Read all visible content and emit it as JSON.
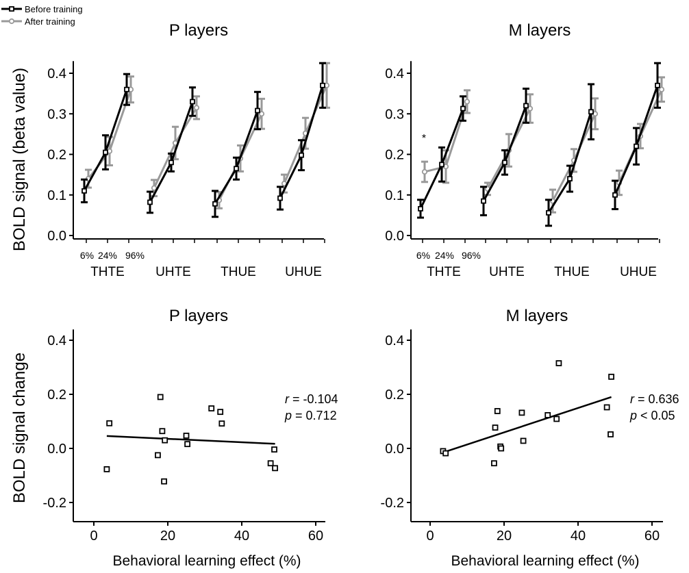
{
  "legend": {
    "before": "Before training",
    "after": "After training",
    "before_color": "#000000",
    "after_color": "#999999"
  },
  "labels": {
    "top_ylabel": "BOLD signal (beta value)",
    "bottom_ylabel": "BOLD signal change",
    "bottom_xlabel": "Behavioral learning effect (%)",
    "pct_6": "6%",
    "pct_24": "24%",
    "pct_96": "96%",
    "star": "*",
    "r_sym": "r",
    "p_sym": "p"
  },
  "chart_data": [
    {
      "type": "line",
      "title": "P layers",
      "ylabel": "BOLD signal (beta value)",
      "ylim": [
        0,
        0.43
      ],
      "yticks": [
        "0.0",
        "0.1",
        "0.2",
        "0.3",
        "0.4"
      ],
      "groups": [
        "THTE",
        "UHTE",
        "THUE",
        "UHUE"
      ],
      "contrast_levels": [
        "6%",
        "24%",
        "96%"
      ],
      "series": [
        {
          "name": "Before training",
          "values": [
            [
              0.11,
              0.205,
              0.36
            ],
            [
              0.082,
              0.18,
              0.33
            ],
            [
              0.078,
              0.165,
              0.308
            ],
            [
              0.092,
              0.198,
              0.37
            ]
          ],
          "errors": [
            [
              0.028,
              0.042,
              0.038
            ],
            [
              0.026,
              0.022,
              0.035
            ],
            [
              0.032,
              0.027,
              0.046
            ],
            [
              0.028,
              0.037,
              0.055
            ]
          ]
        },
        {
          "name": "After training",
          "values": [
            [
              0.14,
              0.208,
              0.36
            ],
            [
              0.117,
              0.228,
              0.315
            ],
            [
              0.087,
              0.19,
              0.3
            ],
            [
              0.128,
              0.252,
              0.37
            ]
          ],
          "errors": [
            [
              0.022,
              0.035,
              0.032
            ],
            [
              0.02,
              0.04,
              0.028
            ],
            [
              0.02,
              0.032,
              0.037
            ],
            [
              0.022,
              0.038,
              0.055
            ]
          ]
        }
      ]
    },
    {
      "type": "line",
      "title": "M layers",
      "ylim": [
        0,
        0.43
      ],
      "yticks": [
        "0.0",
        "0.1",
        "0.2",
        "0.3",
        "0.4"
      ],
      "groups": [
        "THTE",
        "UHTE",
        "THUE",
        "UHUE"
      ],
      "contrast_levels": [
        "6%",
        "24%",
        "96%"
      ],
      "annotation": "*",
      "series": [
        {
          "name": "Before training",
          "values": [
            [
              0.066,
              0.175,
              0.313
            ],
            [
              0.085,
              0.18,
              0.32
            ],
            [
              0.056,
              0.14,
              0.305
            ],
            [
              0.1,
              0.22,
              0.37
            ]
          ],
          "errors": [
            [
              0.022,
              0.042,
              0.03
            ],
            [
              0.035,
              0.03,
              0.042
            ],
            [
              0.032,
              0.032,
              0.068
            ],
            [
              0.035,
              0.045,
              0.055
            ]
          ]
        },
        {
          "name": "After training",
          "values": [
            [
              0.157,
              0.17,
              0.33
            ],
            [
              0.115,
              0.21,
              0.313
            ],
            [
              0.085,
              0.185,
              0.3
            ],
            [
              0.13,
              0.245,
              0.36
            ]
          ],
          "errors": [
            [
              0.025,
              0.04,
              0.028
            ],
            [
              0.015,
              0.04,
              0.035
            ],
            [
              0.028,
              0.028,
              0.038
            ],
            [
              0.03,
              0.03,
              0.03
            ]
          ]
        }
      ]
    },
    {
      "type": "scatter",
      "title": "P layers",
      "xlabel": "Behavioral learning effect (%)",
      "ylabel": "BOLD signal change",
      "xlim": [
        -5,
        63
      ],
      "ylim": [
        -0.26,
        0.44
      ],
      "xticks": [
        "0",
        "20",
        "40",
        "60"
      ],
      "yticks": [
        "-0.2",
        "0.0",
        "0.2",
        "0.4"
      ],
      "points": [
        [
          3.5,
          -0.077
        ],
        [
          4.2,
          0.093
        ],
        [
          17.3,
          -0.025
        ],
        [
          18,
          0.19
        ],
        [
          18.5,
          0.064
        ],
        [
          19,
          -0.122
        ],
        [
          19.2,
          0.03
        ],
        [
          25,
          0.047
        ],
        [
          25.3,
          0.016
        ],
        [
          31.8,
          0.148
        ],
        [
          34.2,
          0.135
        ],
        [
          34.6,
          0.092
        ],
        [
          47.8,
          -0.055
        ],
        [
          48.8,
          -0.004
        ],
        [
          49,
          -0.073
        ]
      ],
      "fit": [
        [
          3.5,
          0.046
        ],
        [
          49,
          0.017
        ]
      ],
      "r": "-0.104",
      "p": "0.712",
      "r_text": " = -0.104",
      "p_text": " = 0.712"
    },
    {
      "type": "scatter",
      "title": "M layers",
      "xlabel": "Behavioral learning effect (%)",
      "xlim": [
        -5,
        63
      ],
      "ylim": [
        -0.26,
        0.44
      ],
      "xticks": [
        "0",
        "20",
        "40",
        "60"
      ],
      "yticks": [
        "-0.2",
        "0.0",
        "0.2",
        "0.4"
      ],
      "points": [
        [
          3.5,
          -0.01
        ],
        [
          4.2,
          -0.018
        ],
        [
          17.3,
          -0.055
        ],
        [
          17.6,
          0.077
        ],
        [
          18.2,
          0.138
        ],
        [
          19,
          0.007
        ],
        [
          19.2,
          0
        ],
        [
          24.8,
          0.132
        ],
        [
          25.2,
          0.028
        ],
        [
          31.8,
          0.123
        ],
        [
          34.2,
          0.109
        ],
        [
          34.8,
          0.315
        ],
        [
          47.8,
          0.152
        ],
        [
          48.8,
          0.052
        ],
        [
          49,
          0.265
        ]
      ],
      "fit": [
        [
          3.5,
          -0.015
        ],
        [
          49,
          0.19
        ]
      ],
      "r": "0.636",
      "p": "< 0.05",
      "r_text": " = 0.636",
      "p_text": " < 0.05"
    }
  ]
}
